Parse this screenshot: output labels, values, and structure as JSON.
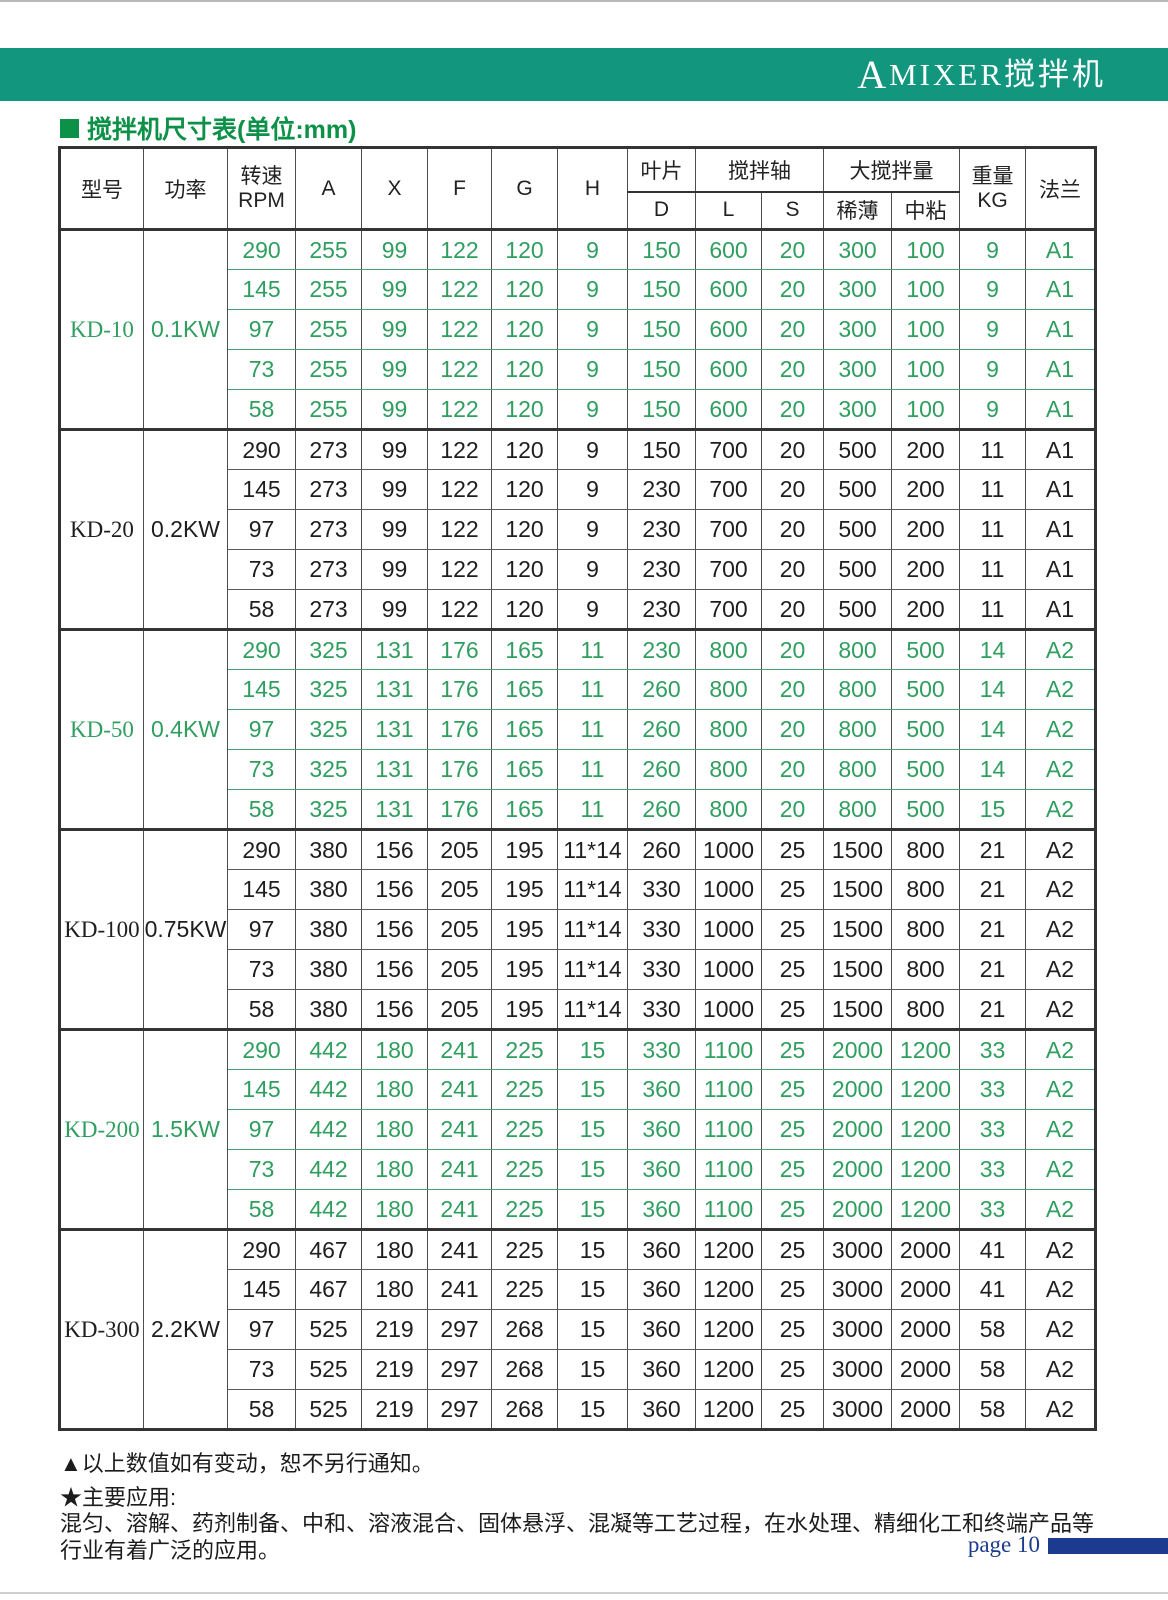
{
  "banner": {
    "title_prefix": "A",
    "title_rest": "MIXER搅拌机"
  },
  "section_title": "搅拌机尺寸表(单位:mm)",
  "colors": {
    "banner_teal": "#12967e",
    "title_green": "#0d9148",
    "table_green_text": "#2f9e5f",
    "table_black_text": "#1e1e1e",
    "page_navy": "#1c3b8e"
  },
  "table": {
    "headers": {
      "model": "型号",
      "power": "功率",
      "speed_line1": "转速",
      "speed_line2": "RPM",
      "a": "A",
      "x": "X",
      "f": "F",
      "g": "G",
      "h": "H",
      "blade_group": "叶片",
      "blade_d": "D",
      "shaft_group": "搅拌轴",
      "shaft_l": "L",
      "shaft_s": "S",
      "capacity_group": "大搅拌量",
      "capacity_thin": "稀薄",
      "capacity_medium": "中粘",
      "weight_line1": "重量",
      "weight_line2": "KG",
      "flange": "法兰"
    },
    "sections": [
      {
        "model": "KD-10",
        "power": "0.1KW",
        "color": "green",
        "rows": [
          [
            "290",
            "255",
            "99",
            "122",
            "120",
            "9",
            "150",
            "600",
            "20",
            "300",
            "100",
            "9",
            "A1"
          ],
          [
            "145",
            "255",
            "99",
            "122",
            "120",
            "9",
            "150",
            "600",
            "20",
            "300",
            "100",
            "9",
            "A1"
          ],
          [
            "97",
            "255",
            "99",
            "122",
            "120",
            "9",
            "150",
            "600",
            "20",
            "300",
            "100",
            "9",
            "A1"
          ],
          [
            "73",
            "255",
            "99",
            "122",
            "120",
            "9",
            "150",
            "600",
            "20",
            "300",
            "100",
            "9",
            "A1"
          ],
          [
            "58",
            "255",
            "99",
            "122",
            "120",
            "9",
            "150",
            "600",
            "20",
            "300",
            "100",
            "9",
            "A1"
          ]
        ]
      },
      {
        "model": "KD-20",
        "power": "0.2KW",
        "color": "black",
        "rows": [
          [
            "290",
            "273",
            "99",
            "122",
            "120",
            "9",
            "150",
            "700",
            "20",
            "500",
            "200",
            "11",
            "A1"
          ],
          [
            "145",
            "273",
            "99",
            "122",
            "120",
            "9",
            "230",
            "700",
            "20",
            "500",
            "200",
            "11",
            "A1"
          ],
          [
            "97",
            "273",
            "99",
            "122",
            "120",
            "9",
            "230",
            "700",
            "20",
            "500",
            "200",
            "11",
            "A1"
          ],
          [
            "73",
            "273",
            "99",
            "122",
            "120",
            "9",
            "230",
            "700",
            "20",
            "500",
            "200",
            "11",
            "A1"
          ],
          [
            "58",
            "273",
            "99",
            "122",
            "120",
            "9",
            "230",
            "700",
            "20",
            "500",
            "200",
            "11",
            "A1"
          ]
        ]
      },
      {
        "model": "KD-50",
        "power": "0.4KW",
        "color": "green",
        "rows": [
          [
            "290",
            "325",
            "131",
            "176",
            "165",
            "11",
            "230",
            "800",
            "20",
            "800",
            "500",
            "14",
            "A2"
          ],
          [
            "145",
            "325",
            "131",
            "176",
            "165",
            "11",
            "260",
            "800",
            "20",
            "800",
            "500",
            "14",
            "A2"
          ],
          [
            "97",
            "325",
            "131",
            "176",
            "165",
            "11",
            "260",
            "800",
            "20",
            "800",
            "500",
            "14",
            "A2"
          ],
          [
            "73",
            "325",
            "131",
            "176",
            "165",
            "11",
            "260",
            "800",
            "20",
            "800",
            "500",
            "14",
            "A2"
          ],
          [
            "58",
            "325",
            "131",
            "176",
            "165",
            "11",
            "260",
            "800",
            "20",
            "800",
            "500",
            "15",
            "A2"
          ]
        ]
      },
      {
        "model": "KD-100",
        "power": "0.75KW",
        "color": "black",
        "rows": [
          [
            "290",
            "380",
            "156",
            "205",
            "195",
            "11*14",
            "260",
            "1000",
            "25",
            "1500",
            "800",
            "21",
            "A2"
          ],
          [
            "145",
            "380",
            "156",
            "205",
            "195",
            "11*14",
            "330",
            "1000",
            "25",
            "1500",
            "800",
            "21",
            "A2"
          ],
          [
            "97",
            "380",
            "156",
            "205",
            "195",
            "11*14",
            "330",
            "1000",
            "25",
            "1500",
            "800",
            "21",
            "A2"
          ],
          [
            "73",
            "380",
            "156",
            "205",
            "195",
            "11*14",
            "330",
            "1000",
            "25",
            "1500",
            "800",
            "21",
            "A2"
          ],
          [
            "58",
            "380",
            "156",
            "205",
            "195",
            "11*14",
            "330",
            "1000",
            "25",
            "1500",
            "800",
            "21",
            "A2"
          ]
        ]
      },
      {
        "model": "KD-200",
        "power": "1.5KW",
        "color": "green",
        "rows": [
          [
            "290",
            "442",
            "180",
            "241",
            "225",
            "15",
            "330",
            "1100",
            "25",
            "2000",
            "1200",
            "33",
            "A2"
          ],
          [
            "145",
            "442",
            "180",
            "241",
            "225",
            "15",
            "360",
            "1100",
            "25",
            "2000",
            "1200",
            "33",
            "A2"
          ],
          [
            "97",
            "442",
            "180",
            "241",
            "225",
            "15",
            "360",
            "1100",
            "25",
            "2000",
            "1200",
            "33",
            "A2"
          ],
          [
            "73",
            "442",
            "180",
            "241",
            "225",
            "15",
            "360",
            "1100",
            "25",
            "2000",
            "1200",
            "33",
            "A2"
          ],
          [
            "58",
            "442",
            "180",
            "241",
            "225",
            "15",
            "360",
            "1100",
            "25",
            "2000",
            "1200",
            "33",
            "A2"
          ]
        ]
      },
      {
        "model": "KD-300",
        "power": "2.2KW",
        "color": "black",
        "rows": [
          [
            "290",
            "467",
            "180",
            "241",
            "225",
            "15",
            "360",
            "1200",
            "25",
            "3000",
            "2000",
            "41",
            "A2"
          ],
          [
            "145",
            "467",
            "180",
            "241",
            "225",
            "15",
            "360",
            "1200",
            "25",
            "3000",
            "2000",
            "41",
            "A2"
          ],
          [
            "97",
            "525",
            "219",
            "297",
            "268",
            "15",
            "360",
            "1200",
            "25",
            "3000",
            "2000",
            "58",
            "A2"
          ],
          [
            "73",
            "525",
            "219",
            "297",
            "268",
            "15",
            "360",
            "1200",
            "25",
            "3000",
            "2000",
            "58",
            "A2"
          ],
          [
            "58",
            "525",
            "219",
            "297",
            "268",
            "15",
            "360",
            "1200",
            "25",
            "3000",
            "2000",
            "58",
            "A2"
          ]
        ]
      }
    ]
  },
  "notes": {
    "note1": "▲以上数值如有变动，恕不另行通知。",
    "note2": "★主要应用:",
    "applications": "混匀、溶解、药剂制备、中和、溶液混合、固体悬浮、混凝等工艺过程，在水处理、精细化工和终端产品等行业有着广泛的应用。"
  },
  "footer": {
    "page_label": "page 10"
  }
}
